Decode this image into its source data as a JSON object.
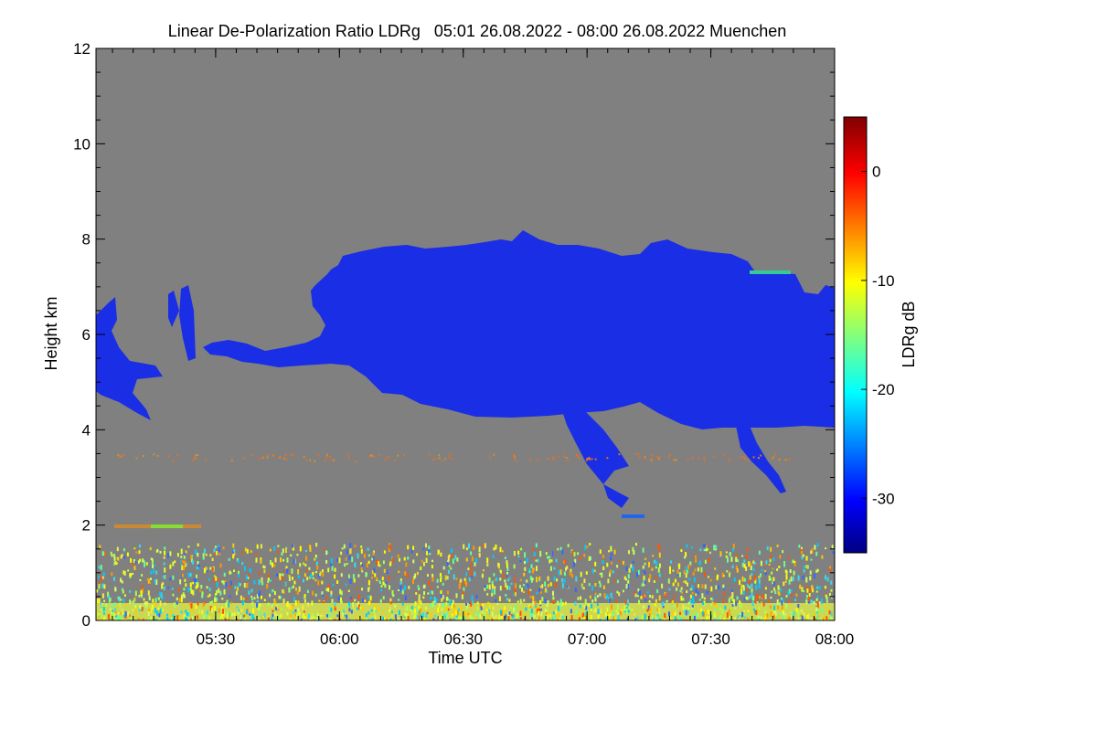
{
  "chart_data": {
    "type": "heatmap",
    "title": "Linear De-Polarization Ratio LDRg   05:01 26.08.2022 - 08:00 26.08.2022 Muenchen",
    "xlabel": "Time UTC",
    "ylabel": "Height km",
    "xlim": [
      "05:01",
      "08:00"
    ],
    "ylim": [
      0,
      12
    ],
    "x_ticks": [
      "05:30",
      "06:00",
      "06:30",
      "07:00",
      "07:30",
      "08:00"
    ],
    "y_ticks": [
      0,
      2,
      4,
      6,
      8,
      10,
      12
    ],
    "colorbar": {
      "label": "LDRg dB",
      "range": [
        -35,
        5
      ],
      "ticks": [
        0,
        -10,
        -20,
        -30
      ],
      "colormap": [
        "#000080",
        "#0000ff",
        "#00ffff",
        "#ffff00",
        "#ff0000",
        "#800000"
      ]
    },
    "background_color": "#808080",
    "features": [
      {
        "name": "main-cloud",
        "start": "05:01",
        "end": "08:00",
        "base_km": 4.0,
        "top_km": 8.2,
        "ldr_db": -30
      },
      {
        "name": "fall-streak-1",
        "start": "06:55",
        "end": "07:10",
        "base_km": 2.4,
        "top_km": 4.3,
        "ldr_db": -30
      },
      {
        "name": "fall-streak-2",
        "start": "07:36",
        "end": "07:47",
        "base_km": 2.6,
        "top_km": 4.1,
        "ldr_db": -30
      },
      {
        "name": "boundary-layer-noise",
        "start": "05:01",
        "end": "08:00",
        "base_km": 0,
        "top_km": 1.5,
        "ldr_db": -12
      },
      {
        "name": "aerosol-layer",
        "start": "05:01",
        "end": "07:50",
        "base_km": 3.35,
        "top_km": 3.5,
        "ldr_db": -5
      }
    ]
  }
}
